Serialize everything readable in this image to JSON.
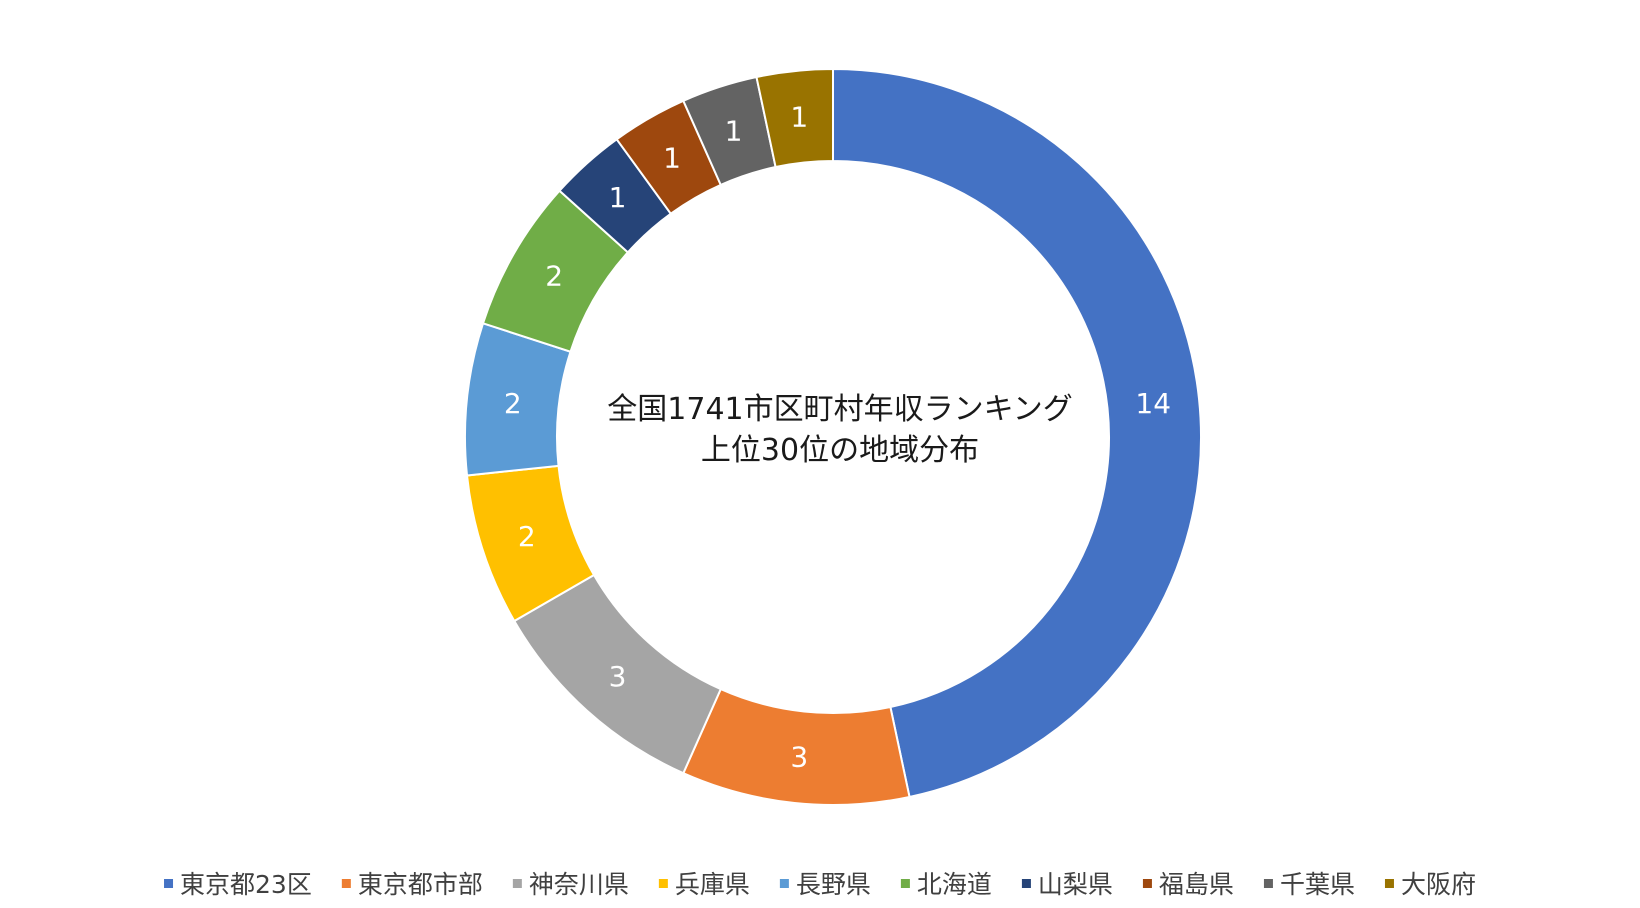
{
  "chart_data": {
    "type": "pie",
    "style": "doughnut",
    "title_lines": [
      "全国1741市区町村年収ランキング",
      "上位30位の地域分布"
    ],
    "categories": [
      "東京都23区",
      "東京都市部",
      "神奈川県",
      "兵庫県",
      "長野県",
      "北海道",
      "山梨県",
      "福島県",
      "千葉県",
      "大阪府"
    ],
    "values": [
      14,
      3,
      3,
      2,
      2,
      2,
      1,
      1,
      1,
      1
    ],
    "colors": [
      "#4472C4",
      "#ED7D31",
      "#A5A5A5",
      "#FFC000",
      "#5B9BD5",
      "#70AD47",
      "#264478",
      "#9E480E",
      "#636363",
      "#997300"
    ],
    "data_labels": true,
    "legend_position": "bottom"
  }
}
